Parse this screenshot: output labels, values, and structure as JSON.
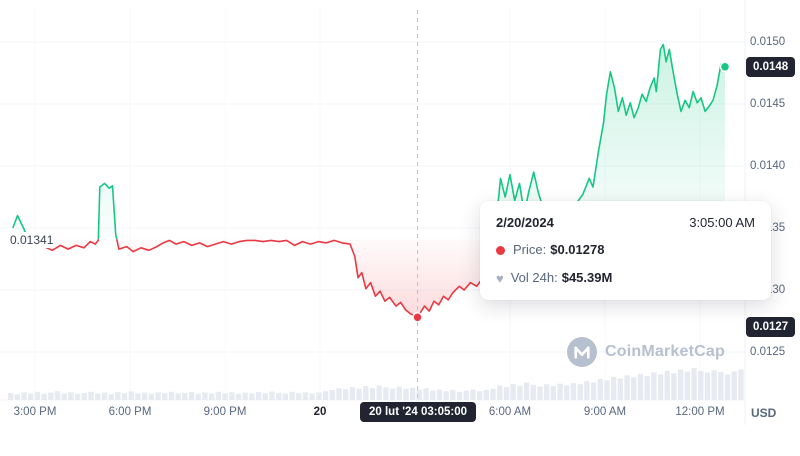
{
  "colors": {
    "up_green": "#16c784",
    "down_red": "#ea3943",
    "badge_bg": "#222531",
    "badge_text": "#ffffff",
    "axis_text": "#58667e",
    "grid": "#f3f5f9",
    "volume_bar": "#e7eaf1",
    "crosshair": "#b9c1cf",
    "watermark": "#b7c0cf"
  },
  "icons": {
    "volume_heart": "♥"
  },
  "watermark": {
    "text": "CoinMarketCap"
  },
  "tooltip": {
    "date": "2/20/2024",
    "time": "3:05:00 AM",
    "price_label": "Price:",
    "price_value": "$0.01278",
    "vol_label": "Vol 24h:",
    "vol_value": "$45.39M"
  },
  "axes": {
    "usd": "USD",
    "y_labels": [
      {
        "text": "0.0150",
        "price": 0.015,
        "badge": false
      },
      {
        "text": "0.0148",
        "price": 0.0148,
        "badge": true
      },
      {
        "text": "0.0145",
        "price": 0.0145,
        "badge": false
      },
      {
        "text": "0.0140",
        "price": 0.014,
        "badge": false
      },
      {
        "text": "0.0135",
        "price": 0.0135,
        "badge": false
      },
      {
        "text": "0.0130",
        "price": 0.013,
        "badge": false
      },
      {
        "text": "0.0127",
        "price": 0.0127,
        "badge": true
      },
      {
        "text": "0.0125",
        "price": 0.0125,
        "badge": false
      }
    ],
    "x_labels": [
      {
        "text": "3:00 PM",
        "h": 15,
        "bold": false
      },
      {
        "text": "6:00 PM",
        "h": 18,
        "bold": false
      },
      {
        "text": "9:00 PM",
        "h": 21,
        "bold": false
      },
      {
        "text": "20",
        "h": 24,
        "bold": true
      },
      {
        "text": "6:00 AM",
        "h": 30,
        "bold": false
      },
      {
        "text": "9:00 AM",
        "h": 33,
        "bold": false
      },
      {
        "text": "12:00 PM",
        "h": 36,
        "bold": false
      }
    ],
    "x_badge": {
      "text": "20 lut '24 03:05:00",
      "h": 27.083
    }
  },
  "chart_data": {
    "type": "line",
    "title": "",
    "ylabel": "USD",
    "x_unit": "hours; 24 = midnight Feb 20 2024, axis spans ~2:20 PM Feb 19 to ~12:45 PM Feb 20",
    "ylim": [
      0.0125,
      0.015
    ],
    "y_ticks": [
      0.015,
      0.0145,
      0.014,
      0.0135,
      0.013,
      0.0125
    ],
    "baseline_price": 0.01341,
    "baseline_label": "0.01341",
    "crosshair_h": 27.083,
    "marker_low": {
      "h": 27.08,
      "p": 0.01278
    },
    "marker_end": {
      "h": 36.79,
      "p": 0.0148
    },
    "layout": {
      "x_domain": [
        14.15,
        37.42
      ],
      "x_range": [
        8,
        745
      ],
      "y_domain": [
        0.015,
        0.0125
      ],
      "y_range": [
        42,
        352
      ],
      "volume_baseline_y": 400,
      "volume_max_h": 29,
      "legend": "none",
      "grid": "faint"
    },
    "points": [
      [
        14.3,
        0.0135
      ],
      [
        14.45,
        0.0136
      ],
      [
        14.6,
        0.01352
      ],
      [
        14.8,
        0.01341
      ],
      [
        15.2,
        0.01336
      ],
      [
        15.55,
        0.01332
      ],
      [
        15.8,
        0.01336
      ],
      [
        16.05,
        0.01333
      ],
      [
        16.3,
        0.01336
      ],
      [
        16.55,
        0.01334
      ],
      [
        16.75,
        0.01339
      ],
      [
        16.9,
        0.01337
      ],
      [
        17.0,
        0.0134
      ],
      [
        17.05,
        0.01383
      ],
      [
        17.2,
        0.01386
      ],
      [
        17.35,
        0.01382
      ],
      [
        17.45,
        0.01384
      ],
      [
        17.55,
        0.01345
      ],
      [
        17.65,
        0.01333
      ],
      [
        17.9,
        0.01335
      ],
      [
        18.1,
        0.01331
      ],
      [
        18.35,
        0.01334
      ],
      [
        18.6,
        0.01332
      ],
      [
        18.85,
        0.01335
      ],
      [
        19.05,
        0.01338
      ],
      [
        19.25,
        0.0134
      ],
      [
        19.45,
        0.01337
      ],
      [
        19.7,
        0.01339
      ],
      [
        19.95,
        0.01336
      ],
      [
        20.2,
        0.01338
      ],
      [
        20.45,
        0.01335
      ],
      [
        20.7,
        0.01337
      ],
      [
        20.95,
        0.01339
      ],
      [
        21.2,
        0.01337
      ],
      [
        21.45,
        0.01339
      ],
      [
        21.7,
        0.0134
      ],
      [
        21.95,
        0.0134
      ],
      [
        22.2,
        0.01339
      ],
      [
        22.45,
        0.0134
      ],
      [
        22.7,
        0.01339
      ],
      [
        22.95,
        0.0134
      ],
      [
        23.2,
        0.01336
      ],
      [
        23.45,
        0.01339
      ],
      [
        23.7,
        0.01337
      ],
      [
        23.95,
        0.01339
      ],
      [
        24.2,
        0.01338
      ],
      [
        24.45,
        0.0134
      ],
      [
        24.7,
        0.01338
      ],
      [
        24.95,
        0.01337
      ],
      [
        25.1,
        0.01327
      ],
      [
        25.2,
        0.0131
      ],
      [
        25.32,
        0.01314
      ],
      [
        25.45,
        0.01301
      ],
      [
        25.6,
        0.01306
      ],
      [
        25.75,
        0.01295
      ],
      [
        25.9,
        0.01299
      ],
      [
        26.05,
        0.01291
      ],
      [
        26.2,
        0.01294
      ],
      [
        26.4,
        0.01287
      ],
      [
        26.55,
        0.0129
      ],
      [
        26.7,
        0.01284
      ],
      [
        26.85,
        0.01281
      ],
      [
        27.08,
        0.01278
      ],
      [
        27.3,
        0.01287
      ],
      [
        27.45,
        0.01283
      ],
      [
        27.6,
        0.01291
      ],
      [
        27.75,
        0.01288
      ],
      [
        27.9,
        0.01295
      ],
      [
        28.05,
        0.01292
      ],
      [
        28.2,
        0.01298
      ],
      [
        28.4,
        0.01303
      ],
      [
        28.55,
        0.013
      ],
      [
        28.75,
        0.01306
      ],
      [
        28.95,
        0.01303
      ],
      [
        29.15,
        0.0131
      ],
      [
        29.35,
        0.01313
      ],
      [
        29.55,
        0.0135
      ],
      [
        29.7,
        0.0139
      ],
      [
        29.85,
        0.01375
      ],
      [
        30.0,
        0.01393
      ],
      [
        30.15,
        0.01372
      ],
      [
        30.3,
        0.01386
      ],
      [
        30.45,
        0.01362
      ],
      [
        30.6,
        0.0138
      ],
      [
        30.75,
        0.01395
      ],
      [
        30.9,
        0.01378
      ],
      [
        31.1,
        0.01362
      ],
      [
        31.35,
        0.01357
      ],
      [
        31.6,
        0.01366
      ],
      [
        31.85,
        0.0136
      ],
      [
        32.1,
        0.0137
      ],
      [
        32.3,
        0.01377
      ],
      [
        32.5,
        0.0139
      ],
      [
        32.62,
        0.01383
      ],
      [
        32.8,
        0.01413
      ],
      [
        32.95,
        0.01434
      ],
      [
        33.05,
        0.01458
      ],
      [
        33.17,
        0.01476
      ],
      [
        33.3,
        0.01463
      ],
      [
        33.42,
        0.01444
      ],
      [
        33.55,
        0.01455
      ],
      [
        33.67,
        0.01441
      ],
      [
        33.8,
        0.01451
      ],
      [
        33.92,
        0.01439
      ],
      [
        34.05,
        0.01447
      ],
      [
        34.17,
        0.01458
      ],
      [
        34.3,
        0.01452
      ],
      [
        34.42,
        0.01463
      ],
      [
        34.55,
        0.01471
      ],
      [
        34.62,
        0.0146
      ],
      [
        34.75,
        0.01494
      ],
      [
        34.84,
        0.01498
      ],
      [
        34.93,
        0.01484
      ],
      [
        35.03,
        0.01494
      ],
      [
        35.15,
        0.01476
      ],
      [
        35.28,
        0.01458
      ],
      [
        35.4,
        0.01444
      ],
      [
        35.53,
        0.01453
      ],
      [
        35.66,
        0.01447
      ],
      [
        35.78,
        0.0146
      ],
      [
        35.91,
        0.01451
      ],
      [
        36.03,
        0.01455
      ],
      [
        36.16,
        0.01444
      ],
      [
        36.28,
        0.01448
      ],
      [
        36.41,
        0.01453
      ],
      [
        36.54,
        0.01465
      ],
      [
        36.66,
        0.01482
      ],
      [
        36.79,
        0.0148
      ]
    ],
    "volume": [
      0.14,
      0.1,
      0.16,
      0.12,
      0.18,
      0.11,
      0.15,
      0.2,
      0.12,
      0.16,
      0.11,
      0.14,
      0.18,
      0.12,
      0.15,
      0.1,
      0.17,
      0.13,
      0.19,
      0.12,
      0.15,
      0.11,
      0.16,
      0.13,
      0.18,
      0.12,
      0.14,
      0.17,
      0.11,
      0.15,
      0.12,
      0.18,
      0.13,
      0.16,
      0.11,
      0.15,
      0.12,
      0.17,
      0.13,
      0.19,
      0.14,
      0.12,
      0.18,
      0.13,
      0.16,
      0.12,
      0.15,
      0.2,
      0.24,
      0.3,
      0.27,
      0.34,
      0.29,
      0.38,
      0.31,
      0.4,
      0.33,
      0.29,
      0.36,
      0.28,
      0.32,
      0.26,
      0.3,
      0.22,
      0.26,
      0.2,
      0.24,
      0.18,
      0.22,
      0.26,
      0.2,
      0.24,
      0.28,
      0.4,
      0.34,
      0.45,
      0.38,
      0.5,
      0.42,
      0.36,
      0.44,
      0.38,
      0.46,
      0.4,
      0.48,
      0.44,
      0.55,
      0.5,
      0.62,
      0.58,
      0.7,
      0.64,
      0.75,
      0.68,
      0.8,
      0.72,
      0.85,
      0.78,
      0.9,
      0.82,
      0.95,
      0.88,
      1.0,
      0.9,
      0.84,
      0.92,
      0.86,
      0.78,
      0.88,
      0.95
    ]
  }
}
